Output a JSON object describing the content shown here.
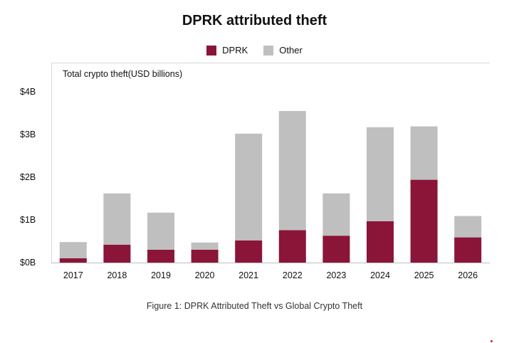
{
  "chart_data": {
    "type": "bar",
    "stacked": true,
    "title": "DPRK attributed theft",
    "ylabel": "Total crypto theft(USD billions)",
    "xlabel": "",
    "categories": [
      "2017",
      "2018",
      "2019",
      "2020",
      "2021",
      "2022",
      "2023",
      "2024",
      "2025",
      "2026"
    ],
    "series": [
      {
        "name": "DPRK",
        "color": "#8a1538",
        "values": [
          0.1,
          0.42,
          0.3,
          0.3,
          0.52,
          0.76,
          0.63,
          0.97,
          1.94,
          0.59
        ]
      },
      {
        "name": "Other",
        "color": "#bfbfbf",
        "values": [
          0.38,
          1.2,
          0.87,
          0.17,
          2.5,
          2.79,
          0.99,
          2.2,
          1.25,
          0.5
        ]
      }
    ],
    "ylim": [
      0,
      4
    ],
    "yticks": [
      0,
      1,
      2,
      3,
      4
    ],
    "ytick_labels": [
      "$0B",
      "$1B",
      "$2B",
      "$3B",
      "$4B"
    ],
    "legend_position": "top-center",
    "grid": false
  },
  "caption": "Figure 1: DPRK Attributed Theft vs Global Crypto Theft"
}
